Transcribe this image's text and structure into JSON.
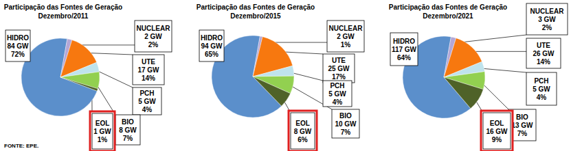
{
  "chart_data": [
    {
      "type": "pie",
      "title": "Participação das Fontes de Geração",
      "subtitle": "Dezembro/2011",
      "categories": [
        "HIDRO",
        "NUCLEAR",
        "UTE",
        "PCH",
        "BIO",
        "EOL"
      ],
      "values": [
        72,
        2,
        14,
        4,
        7,
        1
      ],
      "value_labels": [
        "72%",
        "2%",
        "14%",
        "4%",
        "7%",
        "1%"
      ],
      "gw_labels": [
        "84 GW",
        "2 GW",
        "17 GW",
        "5 GW",
        "8 GW",
        "1 GW"
      ],
      "colors": [
        "#5b8fcb",
        "#b4a7d6",
        "#f7780f",
        "#bfe3ec",
        "#92d050",
        "#4f6228"
      ],
      "data_labels": true
    },
    {
      "type": "pie",
      "title": "Participação das Fontes de Geração",
      "subtitle": "Dezembro/2015",
      "categories": [
        "HIDRO",
        "NUCLEAR",
        "UTE",
        "PCH",
        "BIO",
        "EOL"
      ],
      "values": [
        65,
        1,
        17,
        4,
        7,
        6
      ],
      "value_labels": [
        "65%",
        "1%",
        "17%",
        "4%",
        "7%",
        "6%"
      ],
      "gw_labels": [
        "94 GW",
        "2 GW",
        "25 GW",
        "5 GW",
        "10 GW",
        "8 GW"
      ],
      "colors": [
        "#5b8fcb",
        "#b4a7d6",
        "#f7780f",
        "#bfe3ec",
        "#92d050",
        "#4f6228"
      ],
      "data_labels": true
    },
    {
      "type": "pie",
      "title": "Participação das Fontes de Geração",
      "subtitle": "Dezembro/2021",
      "categories": [
        "HIDRO",
        "NUCLEAR",
        "UTE",
        "PCH",
        "BIO",
        "EOL"
      ],
      "values": [
        64,
        2,
        14,
        4,
        7,
        9
      ],
      "value_labels": [
        "64%",
        "2%",
        "14%",
        "4%",
        "7%",
        "9%"
      ],
      "gw_labels": [
        "117 GW",
        "3 GW",
        "26 GW",
        "5 GW",
        "13 GW",
        "16 GW"
      ],
      "colors": [
        "#5b8fcb",
        "#b4a7d6",
        "#f7780f",
        "#bfe3ec",
        "#92d050",
        "#4f6228"
      ],
      "data_labels": true
    }
  ],
  "source": "FONTE: EPE."
}
